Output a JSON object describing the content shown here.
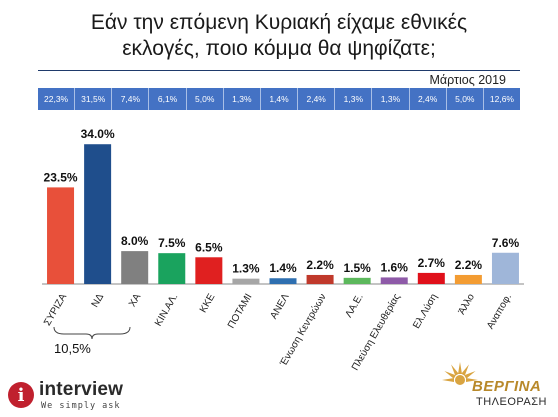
{
  "title_line1": "Εάν την επόμενη Κυριακή είχαμε εθνικές",
  "title_line2": "εκλογές, ποιο κόμμα θα ψηφίζατε;",
  "date_label": "Μάρτιος 2019",
  "strip_values": [
    "22,3%",
    "31,5%",
    "7,4%",
    "6,1%",
    "5,0%",
    "1,3%",
    "1,4%",
    "2,4%",
    "1,3%",
    "1,3%",
    "2,4%",
    "5,0%",
    "12,6%"
  ],
  "group_note": "10,5%",
  "logos": {
    "left_letter": "i",
    "left_name": "interview",
    "left_tagline": "We simply ask",
    "right_name": "ΒΕΡΓΙΝΑ",
    "right_sub": "ΤΗΛΕΟΡΑΣΗ"
  },
  "chart_data": {
    "type": "bar",
    "title": "Εάν την επόμενη Κυριακή είχαμε εθνικές εκλογές, ποιο κόμμα θα ψηφίζατε;",
    "categories": [
      "ΣΥΡΙΖΑ",
      "ΝΔ",
      "ΧΑ",
      "ΚΙΝ.ΑΛ.",
      "ΚΚΕ",
      "ΠΟΤΑΜΙ",
      "ΑΝΕΛ",
      "Ένωση Κεντρώων",
      "ΛΑ.Ε.",
      "Πλεύση Ελευθερίας",
      "Ελ.Λύση",
      "Άλλο",
      "Αναποφ."
    ],
    "values": [
      23.5,
      34.0,
      8.0,
      7.5,
      6.5,
      1.3,
      1.4,
      2.2,
      1.5,
      1.6,
      2.7,
      2.2,
      7.6
    ],
    "value_labels": [
      "23.5%",
      "34.0%",
      "8.0%",
      "7.5%",
      "6.5%",
      "1.3%",
      "1.4%",
      "2.2%",
      "1.5%",
      "1.6%",
      "2.7%",
      "2.2%",
      "7.6%"
    ],
    "colors": [
      "#e8503a",
      "#1f4e8c",
      "#808080",
      "#1aa35e",
      "#e02020",
      "#a6a6a6",
      "#2e6fb0",
      "#c0392b",
      "#5cb85c",
      "#8e5aa8",
      "#e0101a",
      "#f39c32",
      "#9fb6d9"
    ],
    "ylim": [
      0,
      36
    ],
    "grid": false,
    "legend": "none"
  }
}
